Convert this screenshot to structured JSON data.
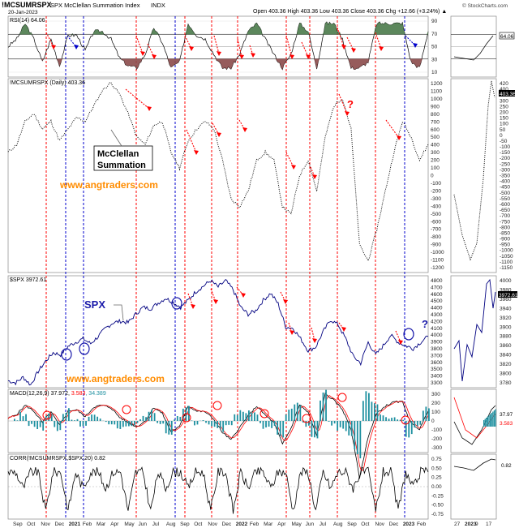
{
  "header": {
    "symbol": "!MCSUMRSPX",
    "name": "SPX McClellan Summation Index",
    "exchange": "INDX",
    "date": "20-Jan-2023",
    "quote": "Open 403.36  High 403.36  Low 403.36  Close 403.36  Chg +12.66 (+3.24%) ▲",
    "credit": "© StockCharts.com"
  },
  "panels": {
    "rsi": {
      "label": "RSI(14) 64.06",
      "value": "64.06",
      "ticks": [
        "90",
        "70",
        "50",
        "30",
        "10"
      ]
    },
    "summation": {
      "label": "!MCSUMRSPX (Daily) 403.36",
      "value": "403.36",
      "ticks": [
        "1200",
        "1100",
        "1000",
        "900",
        "800",
        "700",
        "600",
        "500",
        "400",
        "300",
        "200",
        "100",
        "0",
        "-100",
        "-200",
        "-300",
        "-400",
        "-500",
        "-600",
        "-700",
        "-800",
        "-900",
        "-1000",
        "-1100",
        "-1200"
      ],
      "side_ticks": [
        "420",
        "400",
        "350",
        "300",
        "250",
        "200",
        "150",
        "100",
        "50",
        "0",
        "-50",
        "-100",
        "-150",
        "-200",
        "-250",
        "-300",
        "-350",
        "-400",
        "-450",
        "-500",
        "-550",
        "-600",
        "-650",
        "-700",
        "-750",
        "-800",
        "-850",
        "-900",
        "-950",
        "-1000",
        "-1050",
        "-1100",
        "-1150"
      ],
      "callout": [
        "McClellan",
        "Summation"
      ],
      "question": "?",
      "watermark": "www.angtraders.com"
    },
    "spx": {
      "label": "$SPX 3972.61",
      "value": "3972.61",
      "ticks": [
        "4800",
        "4700",
        "4600",
        "4500",
        "4400",
        "4300",
        "4200",
        "4100",
        "4000",
        "3900",
        "3800",
        "3700",
        "3600",
        "3500",
        "3400",
        "3300"
      ],
      "side_ticks": [
        "4000",
        "3980",
        "3960",
        "3940",
        "3920",
        "3900",
        "3880",
        "3860",
        "3840",
        "3820",
        "3800",
        "3780"
      ],
      "callout": "SPX",
      "question": "?",
      "watermark": "www.angtraders.com"
    },
    "macd": {
      "label_main": "MACD(12,26,9) 37.972, ",
      "label_signal": "3.583",
      "label_hist": ", 34.389",
      "value_a": "37.97",
      "value_b": "3.583",
      "ticks": [
        "300",
        "200",
        "100",
        "0",
        "-100",
        "-200",
        "-300"
      ]
    },
    "corr": {
      "label": "CORR(!MCSUMRSPX,$SPX,20) 0.82",
      "value": "0.82",
      "ticks": [
        "0.75",
        "0.50",
        "0.25",
        "0.00",
        "-0.25",
        "-0.50",
        "-0.75"
      ]
    }
  },
  "x_axis": [
    "Sep",
    "Oct",
    "Nov",
    "Dec",
    "2021",
    "Feb",
    "Mar",
    "Apr",
    "May",
    "Jun",
    "Jul",
    "Aug",
    "Sep",
    "Oct",
    "Nov",
    "Dec",
    "2022",
    "Feb",
    "Mar",
    "Apr",
    "May",
    "Jun",
    "Jul",
    "Aug",
    "Sep",
    "Oct",
    "Nov",
    "Dec",
    "2023",
    "Feb"
  ],
  "side_x_axis": [
    "27",
    "2023",
    "9",
    "17"
  ],
  "colors": {
    "red_line": "#ff0000",
    "blue_line": "#0000cc",
    "price": "#000080",
    "rsi_fill": "#4a7a4a",
    "rsi_low_fill": "#8b4a4a",
    "watermark": "#ff8c00"
  },
  "chart_data": {
    "type": "line",
    "series": [
      {
        "name": "SPX",
        "values": [
          3350,
          3320,
          3400,
          3290,
          3480,
          3630,
          3750,
          3720,
          3840,
          3900,
          3950,
          3880,
          3980,
          4100,
          4180,
          4200,
          4180,
          4300,
          4400,
          4380,
          4460,
          4530,
          4470,
          4400,
          4500,
          4620,
          4700,
          4780,
          4690,
          4780,
          4650,
          4400,
          4300,
          4350,
          4500,
          4600,
          4450,
          4120,
          4100,
          3950,
          3780,
          3830,
          4050,
          4220,
          4150,
          3950,
          3700,
          3600,
          3900,
          3720,
          3850,
          4000,
          3900,
          3850,
          3810,
          3900,
          3980
        ]
      },
      {
        "name": "!MCSUMRSPX",
        "values": [
          300,
          400,
          700,
          800,
          600,
          700,
          450,
          600,
          750,
          700,
          900,
          1100,
          1200,
          1050,
          800,
          500,
          400,
          650,
          700,
          300,
          100,
          450,
          600,
          700,
          600,
          200,
          -300,
          -400,
          -200,
          200,
          300,
          200,
          -400,
          -500,
          0,
          200,
          -200,
          500,
          900,
          1000,
          600,
          -900,
          -1100,
          -700,
          -200,
          300,
          700,
          500,
          200,
          400
        ]
      }
    ]
  }
}
